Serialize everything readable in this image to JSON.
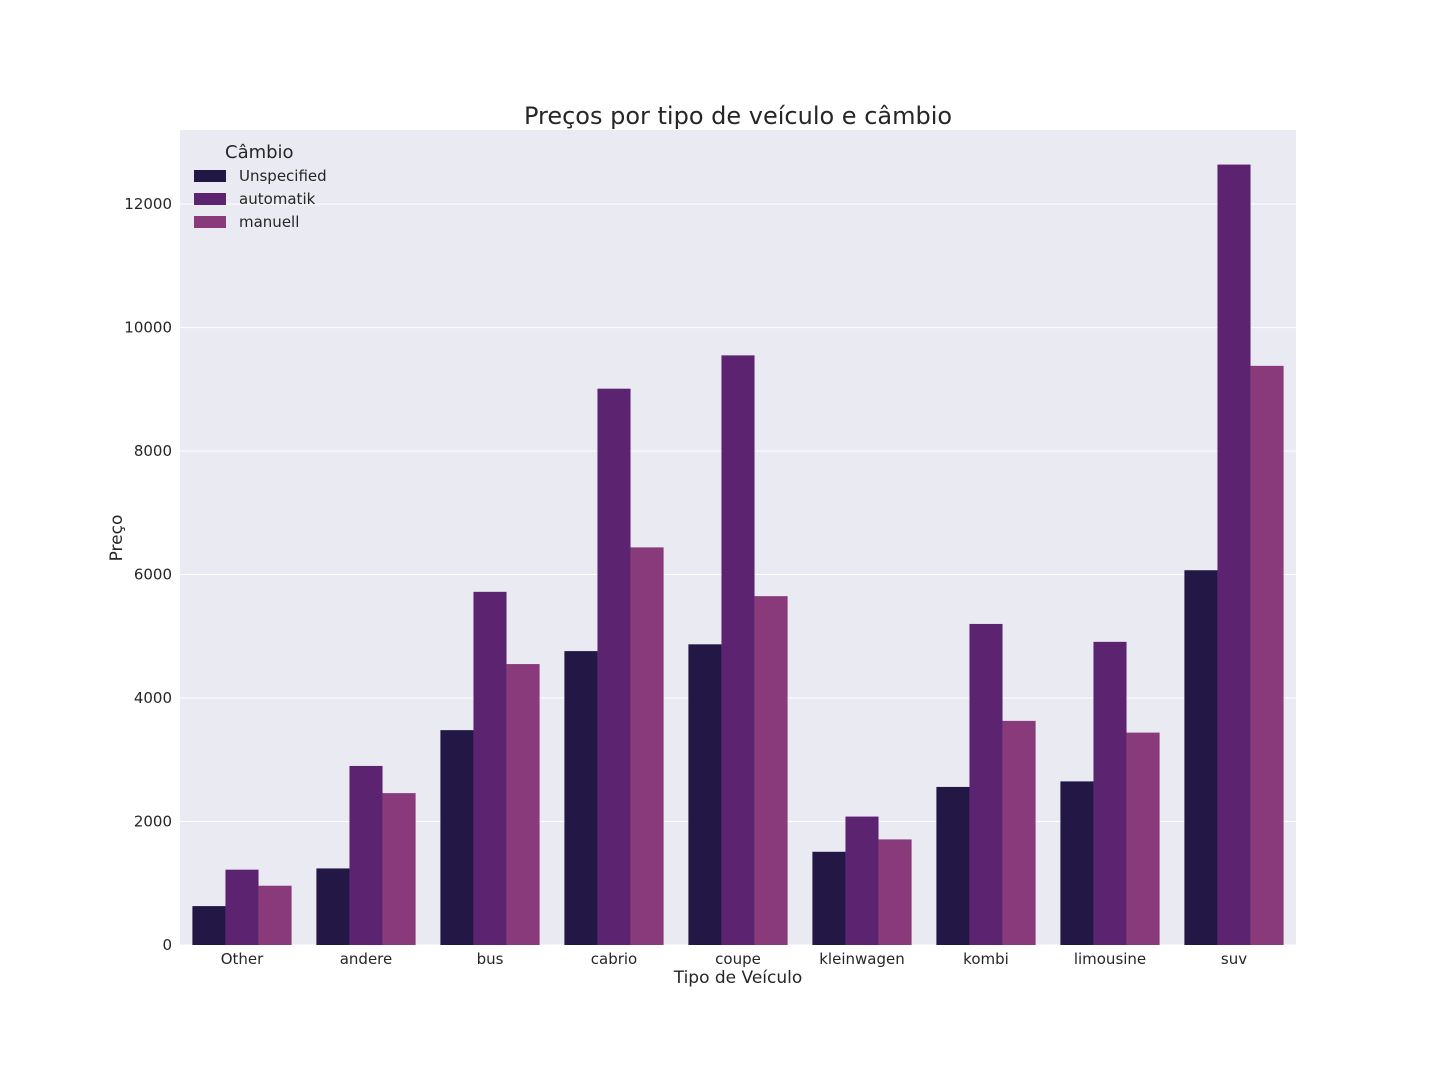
{
  "chart_data": {
    "type": "bar",
    "title": "Preços por tipo de veículo e câmbio",
    "xlabel": "Tipo de Veículo",
    "ylabel": "Preço",
    "ylim": [
      0,
      13200
    ],
    "yticks": [
      0,
      2000,
      4000,
      6000,
      8000,
      10000,
      12000
    ],
    "grid": true,
    "legend": {
      "title": "Câmbio",
      "placement": "top-left"
    },
    "categories": [
      "Other",
      "andere",
      "bus",
      "cabrio",
      "coupe",
      "kleinwagen",
      "kombi",
      "limousine",
      "suv"
    ],
    "series": [
      {
        "name": "Unspecified",
        "color": "#231746",
        "values": [
          630,
          1240,
          3480,
          4760,
          4870,
          1510,
          2560,
          2650,
          6070
        ]
      },
      {
        "name": "automatik",
        "color": "#5b2370",
        "values": [
          1220,
          2900,
          5720,
          9010,
          9550,
          2080,
          5200,
          4910,
          12640
        ]
      },
      {
        "name": "manuell",
        "color": "#893a7a",
        "values": [
          960,
          2460,
          4550,
          6440,
          5650,
          1710,
          3630,
          3440,
          9380
        ]
      }
    ]
  }
}
